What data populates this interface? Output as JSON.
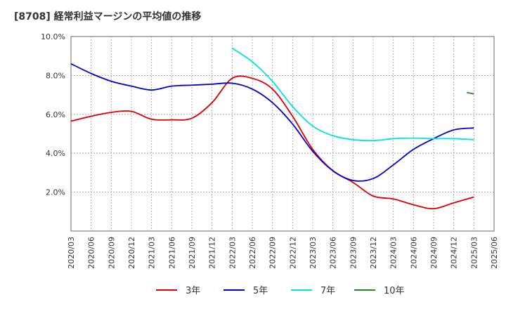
{
  "chart_data": {
    "type": "line",
    "title": "[8708]  経常利益マージンの平均値の推移",
    "ylim": [
      0.0,
      10.0
    ],
    "y_ticks": [
      "10.0%",
      "8.0%",
      "6.0%",
      "4.0%",
      "2.0%"
    ],
    "y_tick_values": [
      10,
      8,
      6,
      4,
      2
    ],
    "x_ticks": [
      "2020/03",
      "2020/06",
      "2020/09",
      "2020/12",
      "2021/03",
      "2021/06",
      "2021/09",
      "2021/12",
      "2022/03",
      "2022/06",
      "2022/09",
      "2022/12",
      "2023/03",
      "2023/06",
      "2023/09",
      "2023/12",
      "2024/03",
      "2024/06",
      "2024/09",
      "2024/12",
      "2025/03",
      "2025/06"
    ],
    "grid": true,
    "legend_position": "bottom",
    "series": [
      {
        "name": "3年",
        "color": "#dd0000",
        "values": [
          5.65,
          5.9,
          6.1,
          6.15,
          5.75,
          5.72,
          5.8,
          6.6,
          7.85,
          7.85,
          7.3,
          5.9,
          4.2,
          3.1,
          2.5,
          1.8,
          1.65,
          1.35,
          1.15,
          1.45,
          1.75
        ]
      },
      {
        "name": "5年",
        "color": "#0000cc",
        "values": [
          8.6,
          8.1,
          7.7,
          7.45,
          7.25,
          7.45,
          7.5,
          7.55,
          7.6,
          7.3,
          6.6,
          5.5,
          4.1,
          3.1,
          2.6,
          2.7,
          3.4,
          4.2,
          4.75,
          5.2,
          5.3
        ]
      },
      {
        "name": "7年",
        "color": "#00e0e8",
        "values": [
          null,
          null,
          null,
          null,
          null,
          null,
          null,
          null,
          9.4,
          8.7,
          7.7,
          6.4,
          5.4,
          4.9,
          4.7,
          4.65,
          4.75,
          4.78,
          4.75,
          4.75,
          4.7
        ]
      },
      {
        "name": "10年",
        "color": "#228822",
        "values": [
          null,
          null,
          null,
          null,
          null,
          null,
          null,
          null,
          null,
          null,
          null,
          null,
          null,
          null,
          null,
          null,
          null,
          null,
          null,
          null,
          7.05
        ]
      }
    ]
  }
}
